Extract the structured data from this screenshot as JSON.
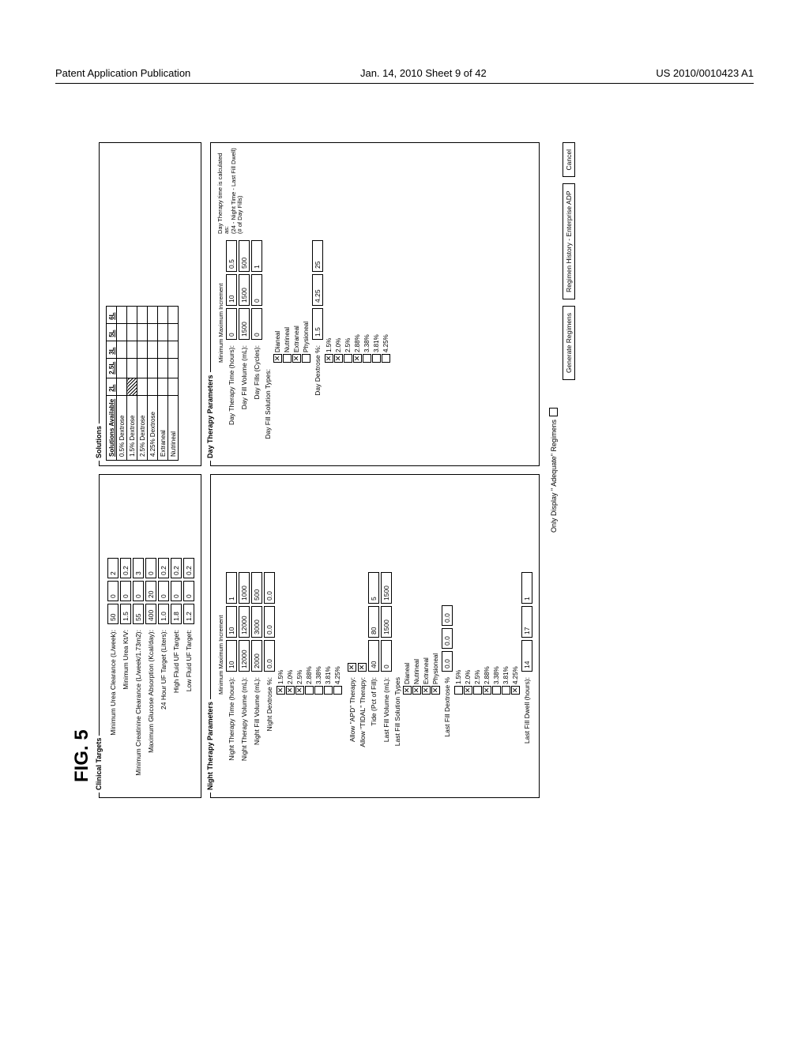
{
  "header": {
    "left": "Patent Application Publication",
    "center": "Jan. 14, 2010  Sheet 9 of 42",
    "right": "US 2010/0010423 A1"
  },
  "figure_label": "FIG. 5",
  "clinical_targets": {
    "legend": "Clinical Targets",
    "rows": [
      {
        "label": "Minimum Urea Clearance (L/week):",
        "a": "50",
        "b": "0",
        "c": "2"
      },
      {
        "label": "Minimum Urea Kt/V:",
        "a": "1.5",
        "b": "0",
        "c": "0.2"
      },
      {
        "label": "Minimum Creatinine Clearance (L/week/1.73m2):",
        "a": "55",
        "b": "0",
        "c": "3"
      },
      {
        "label": "Maximum Glucose Absorption (Kcal/day):",
        "a": "400",
        "b": "20",
        "c": "0"
      },
      {
        "label": "24 Hour UF Target (Liters):",
        "a": "1.0",
        "b": "0",
        "c": "0.2"
      },
      {
        "label": "High Fluid UF Target:",
        "a": "1.8",
        "b": "0",
        "c": "0.2"
      },
      {
        "label": "Low Fluid UF Target:",
        "a": "1.2",
        "b": "0",
        "c": "0.2"
      }
    ]
  },
  "solutions": {
    "legend": "Solutions",
    "col_header": "Solutions Available",
    "vol_headers": [
      "2L",
      "2.5L",
      "3L",
      "5L",
      "6L"
    ],
    "rows": [
      {
        "name": "0.5% Dextrose",
        "mark": [
          0,
          0,
          0,
          0,
          0
        ]
      },
      {
        "name": "1.5% Dextrose",
        "mark": [
          1,
          0,
          0,
          0,
          0
        ]
      },
      {
        "name": "2.5% Dextrose",
        "mark": [
          0,
          0,
          0,
          0,
          0
        ]
      },
      {
        "name": "4.25% Dextrose",
        "mark": [
          0,
          0,
          0,
          0,
          0
        ]
      },
      {
        "name": "Extraneal",
        "mark": [
          0,
          0,
          0,
          0,
          0
        ]
      },
      {
        "name": "Nutrineal",
        "mark": [
          0,
          0,
          0,
          0,
          0
        ]
      }
    ]
  },
  "night": {
    "legend": "Night Therapy Parameters",
    "mmi": "Minimum Maximum Increment",
    "time": {
      "label": "Night Therapy Time (hours):",
      "min": "10",
      "max": "10",
      "inc": "1"
    },
    "vol": {
      "label": "Night Therapy Volume (mL):",
      "min": "12000",
      "max": "12000",
      "inc": "1000"
    },
    "fill": {
      "label": "Night Fill Volume (mL):",
      "min": "2000",
      "max": "3000",
      "inc": "500"
    },
    "dex": {
      "label": "Night Dextrose %:",
      "min": "0.0",
      "max": "0.0",
      "inc": "0.0"
    },
    "dex_opts": [
      {
        "label": "1.5%",
        "checked": true
      },
      {
        "label": "2.0%",
        "checked": true
      },
      {
        "label": "2.5%",
        "checked": true
      },
      {
        "label": "2.88%",
        "checked": false
      },
      {
        "label": "3.38%",
        "checked": false
      },
      {
        "label": "3.81%",
        "checked": false
      },
      {
        "label": "4.25%",
        "checked": false
      }
    ],
    "allow_apd": {
      "label": "Allow \"APD\" Therapy:",
      "checked": true
    },
    "allow_tidal": {
      "label": "Allow \"TIDAL\" Therapy:",
      "checked": true
    },
    "tide": {
      "label": "Tide (Pct of Fill):",
      "min": "40",
      "max": "80",
      "inc": "5"
    },
    "lastfillvol": {
      "label": "Last Fill Volume (mL):",
      "min": "0",
      "max": "1500",
      "inc": "1500"
    },
    "lastfillsol_lbl": "Last Fill Solution Types",
    "lastfillsol": [
      {
        "label": "Dianeal",
        "checked": true
      },
      {
        "label": "Nutrineal",
        "checked": true
      },
      {
        "label": "Extraneal",
        "checked": true
      },
      {
        "label": "Physioneal",
        "checked": true
      }
    ],
    "lastfilldex_lbl": "Last Fill Dextrose %",
    "lastfilldex_vals": {
      "min": "0.0",
      "max": "0.0",
      "inc": "0.0"
    },
    "lastfilldex_opts": [
      {
        "label": "1.5%",
        "checked": false
      },
      {
        "label": "2.0%",
        "checked": true
      },
      {
        "label": "2.5%",
        "checked": false
      },
      {
        "label": "2.88%",
        "checked": true
      },
      {
        "label": "3.38%",
        "checked": false
      },
      {
        "label": "3.81%",
        "checked": false
      },
      {
        "label": "4.25%",
        "checked": true
      }
    ],
    "lastfilldwell": {
      "label": "Last Fill Dwell (hours):",
      "min": "14",
      "max": "17",
      "inc": "1"
    }
  },
  "day": {
    "legend": "Day Therapy Parameters",
    "mmi": "Minimum Maximum Increment",
    "time": {
      "label": "Day Therapy Time (hours):",
      "min": "0",
      "max": "10",
      "inc": "0.5"
    },
    "fill": {
      "label": "Day Fill Volume (mL):",
      "min": "1500",
      "max": "1500",
      "inc": "500"
    },
    "cycles": {
      "label": "Day Fills (Cycles):",
      "min": "0",
      "max": "0",
      "inc": "1"
    },
    "soltypes_lbl": "Day Fill Solution Types:",
    "soltypes": [
      {
        "label": "Dianeal",
        "checked": true
      },
      {
        "label": "Nutrineal",
        "checked": false
      },
      {
        "label": "Extraneal",
        "checked": true
      },
      {
        "label": "Physioneal",
        "checked": false
      }
    ],
    "dex": {
      "label": "Day Dextrose %:",
      "min": "1.5",
      "max": "4.25",
      "inc": "25"
    },
    "dex_opts": [
      {
        "label": "1.5%",
        "checked": true
      },
      {
        "label": "2.0%",
        "checked": true
      },
      {
        "label": "2.5%",
        "checked": false
      },
      {
        "label": "2.88%",
        "checked": true
      },
      {
        "label": "3.38%",
        "checked": false
      },
      {
        "label": "3.81%",
        "checked": false
      },
      {
        "label": "4.25%",
        "checked": false
      }
    ],
    "note": "Day Therapy time is calculated as:\n(24 - Night Time - Last Fill Dwell)\n(# of Day Fills)"
  },
  "footer": {
    "only_display": "Only Display \" Adequate\" Regimens",
    "generate": "Generate Regimens",
    "history": "Regimen History - Enterprise ADP",
    "cancel": "Cancel"
  },
  "colors": {
    "bg": "#ffffff",
    "line": "#000000"
  }
}
